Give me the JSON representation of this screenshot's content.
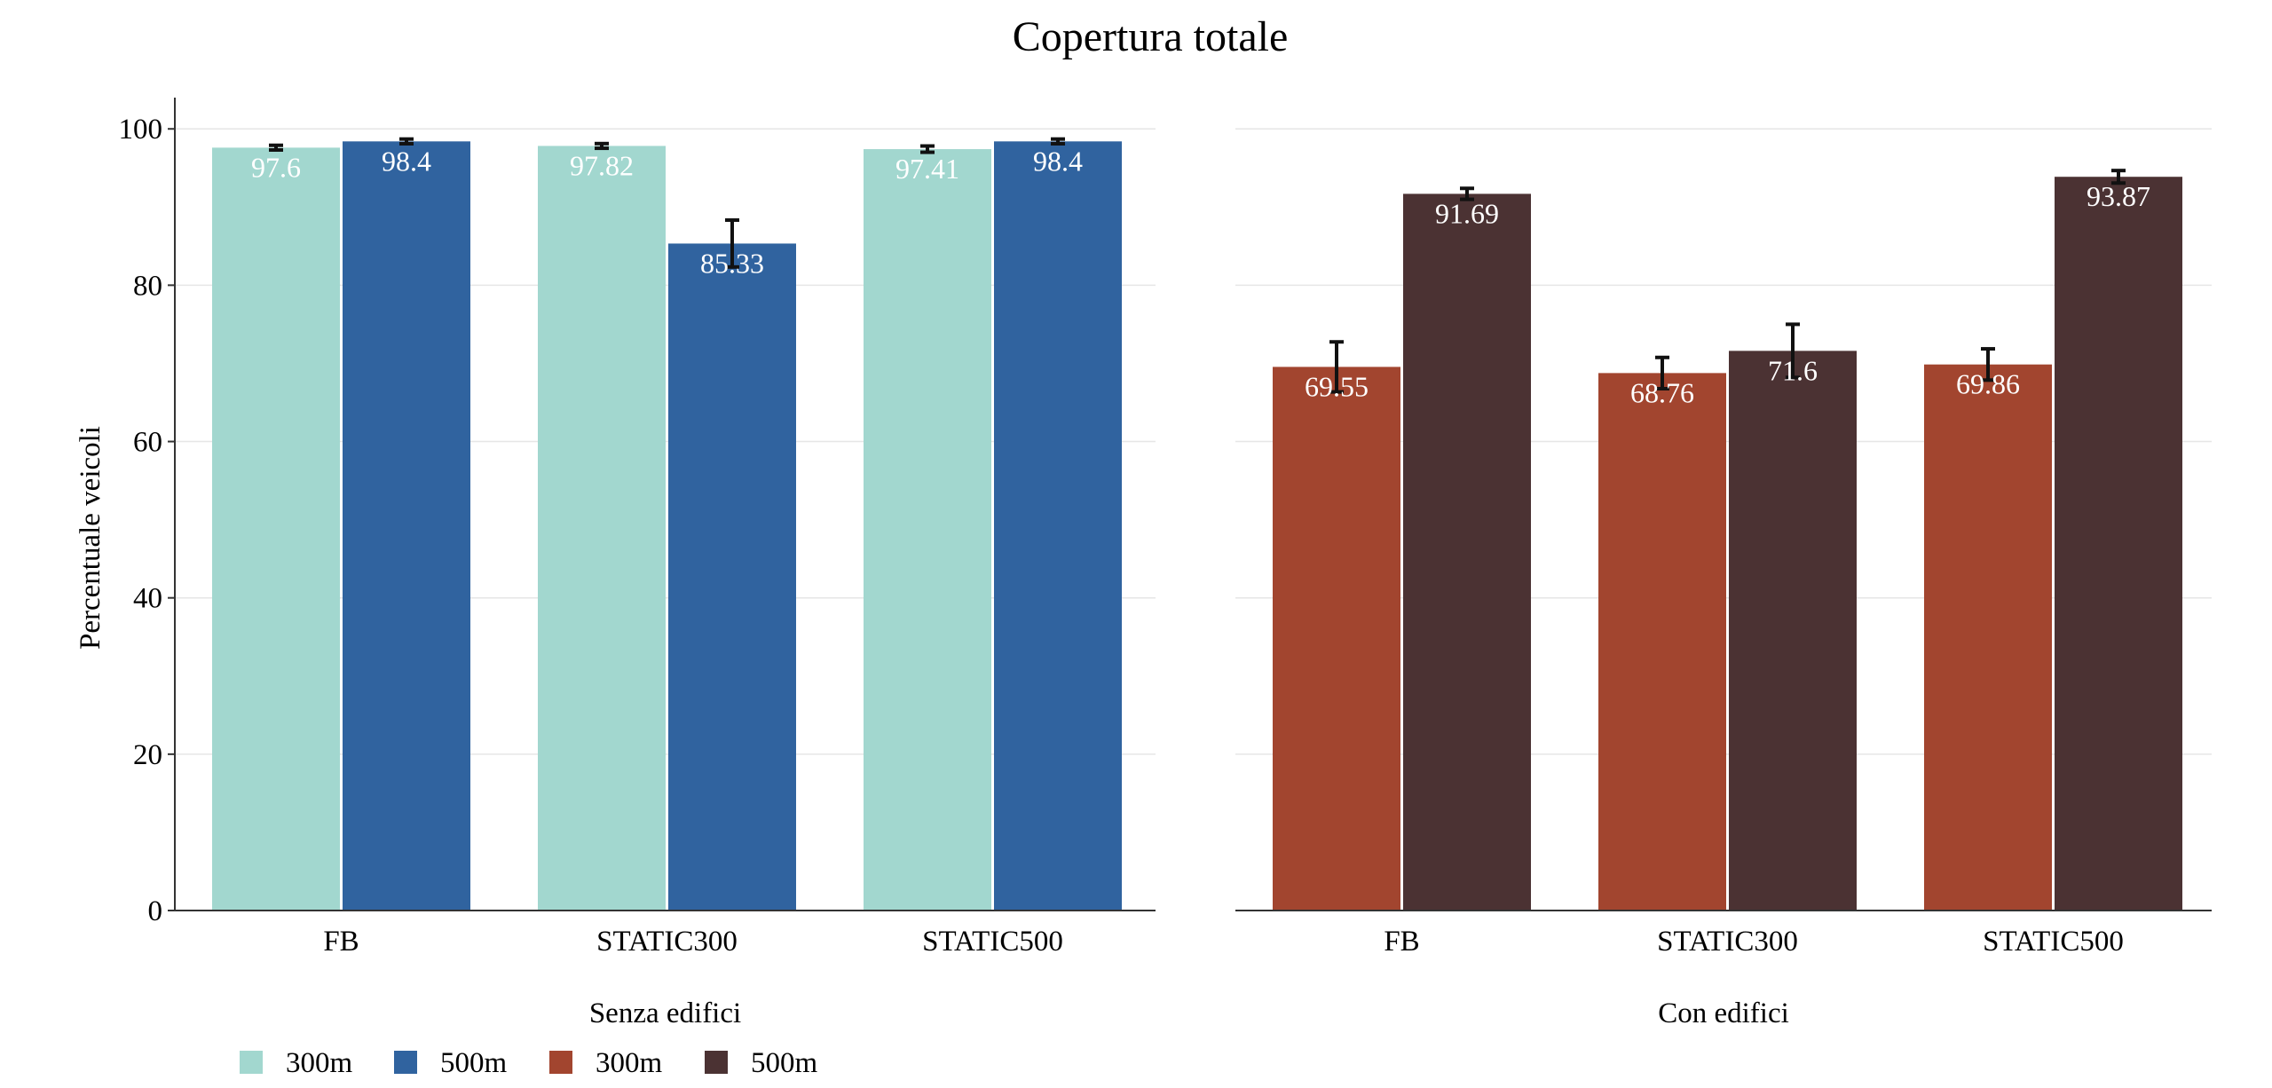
{
  "title": "Copertura totale",
  "chart_data": [
    {
      "type": "bar",
      "xlabel": "Senza edifici",
      "ylabel": "Percentuale veicoli",
      "ylim": [
        0,
        104
      ],
      "yticks": [
        0,
        20,
        40,
        60,
        80,
        100
      ],
      "grid": true,
      "categories": [
        "FB",
        "STATIC300",
        "STATIC500"
      ],
      "series": [
        {
          "name": "300m",
          "color": "#a2d7cf",
          "values": [
            97.6,
            97.82,
            97.41
          ],
          "errors": [
            0.3,
            0.3,
            0.4
          ],
          "labels": [
            "97.6",
            "97.82",
            "97.41"
          ],
          "label_color": "#ffffff"
        },
        {
          "name": "500m",
          "color": "#30639f",
          "values": [
            98.4,
            85.33,
            98.4
          ],
          "errors": [
            0.3,
            3.0,
            0.3
          ],
          "labels": [
            "98.4",
            "85.33",
            "98.4"
          ],
          "label_color": "#ffffff"
        }
      ]
    },
    {
      "type": "bar",
      "xlabel": "Con edifici",
      "ylabel": "",
      "ylim": [
        0,
        104
      ],
      "yticks": [
        0,
        20,
        40,
        60,
        80,
        100
      ],
      "grid": true,
      "categories": [
        "FB",
        "STATIC300",
        "STATIC500"
      ],
      "series": [
        {
          "name": "300m",
          "color": "#a2452f",
          "values": [
            69.55,
            68.76,
            69.86
          ],
          "errors": [
            3.2,
            2.0,
            2.0
          ],
          "labels": [
            "69.55",
            "68.76",
            "69.86"
          ],
          "label_color": "#ffffff"
        },
        {
          "name": "500m",
          "color": "#4b3233",
          "values": [
            91.69,
            71.6,
            93.87
          ],
          "errors": [
            0.7,
            3.4,
            0.8
          ],
          "labels": [
            "91.69",
            "71.6",
            "93.87"
          ],
          "label_color": "#ffffff"
        }
      ]
    }
  ],
  "legend": [
    {
      "label": "300m",
      "color": "#a2d7cf"
    },
    {
      "label": "500m",
      "color": "#30639f"
    },
    {
      "label": "300m",
      "color": "#a2452f"
    },
    {
      "label": "500m",
      "color": "#4b3233"
    }
  ]
}
